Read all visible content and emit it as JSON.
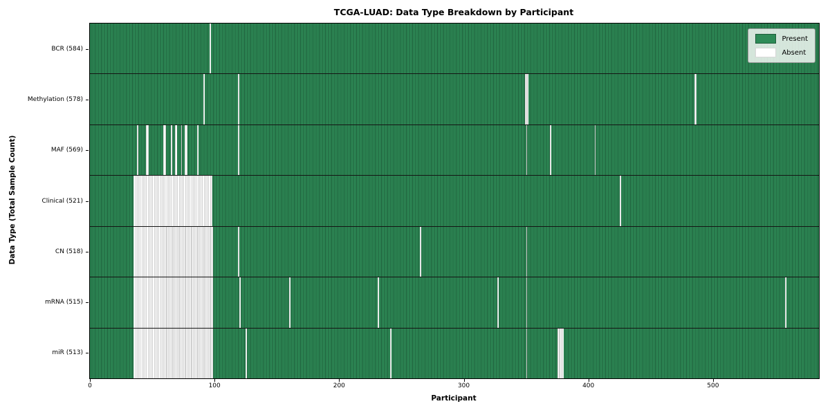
{
  "title": "TCGA-LUAD: Data Type Breakdown by Participant",
  "xlabel": "Participant",
  "ylabel": "Data Type (Total Sample Count)",
  "legend": {
    "present_label": "Present",
    "absent_label": "Absent"
  },
  "colors": {
    "present": "#2e8b57",
    "present_stripe": "#1e5e3a",
    "absent": "#ffffff",
    "absent_stripe": "#9f9f9f"
  },
  "chart_data": {
    "type": "heatmap",
    "title": "TCGA-LUAD: Data Type Breakdown by Participant",
    "xlabel": "Participant",
    "ylabel": "Data Type (Total Sample Count)",
    "x_min": 0,
    "x_max": 585,
    "x_ticks": [
      0,
      100,
      200,
      300,
      400,
      500
    ],
    "legend_position": "upper right",
    "cell_states": [
      "Present",
      "Absent"
    ],
    "rows": [
      {
        "label": "BCR (584)",
        "data_type": "BCR",
        "present_count": 584,
        "absent_ranges": [
          [
            96,
            96
          ]
        ]
      },
      {
        "label": "Methylation (578)",
        "data_type": "Methylation",
        "present_count": 578,
        "absent_ranges": [
          [
            91,
            91
          ],
          [
            119,
            119
          ],
          [
            349,
            351
          ],
          [
            485,
            486
          ]
        ]
      },
      {
        "label": "MAF (569)",
        "data_type": "MAF",
        "present_count": 569,
        "absent_ranges": [
          [
            38,
            38
          ],
          [
            45,
            46
          ],
          [
            59,
            60
          ],
          [
            65,
            65
          ],
          [
            68,
            69
          ],
          [
            73,
            73
          ],
          [
            76,
            77
          ],
          [
            86,
            86
          ],
          [
            119,
            119
          ],
          [
            350,
            350
          ],
          [
            369,
            369
          ],
          [
            405,
            405
          ]
        ]
      },
      {
        "label": "Clinical (521)",
        "data_type": "Clinical",
        "present_count": 521,
        "absent_ranges": [
          [
            35,
            97
          ],
          [
            425,
            425
          ]
        ]
      },
      {
        "label": "CN (518)",
        "data_type": "CN",
        "present_count": 518,
        "absent_ranges": [
          [
            35,
            98
          ],
          [
            119,
            119
          ],
          [
            265,
            265
          ],
          [
            350,
            350
          ]
        ]
      },
      {
        "label": "mRNA (515)",
        "data_type": "mRNA",
        "present_count": 515,
        "absent_ranges": [
          [
            35,
            98
          ],
          [
            120,
            120
          ],
          [
            160,
            160
          ],
          [
            231,
            231
          ],
          [
            327,
            327
          ],
          [
            350,
            350
          ],
          [
            558,
            558
          ]
        ]
      },
      {
        "label": "miR (513)",
        "data_type": "miR",
        "present_count": 513,
        "absent_ranges": [
          [
            35,
            98
          ],
          [
            125,
            125
          ],
          [
            241,
            241
          ],
          [
            350,
            350
          ],
          [
            375,
            379
          ]
        ]
      }
    ]
  }
}
